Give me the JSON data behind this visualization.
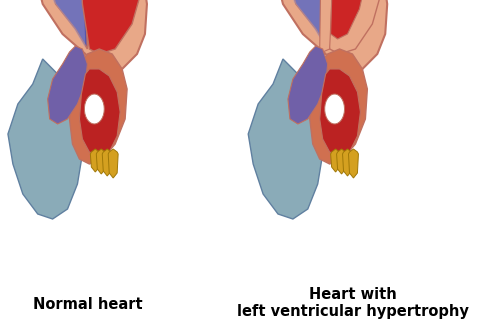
{
  "label_normal": "Normal heart",
  "label_lvh": "Heart with\nleft ventricular hypertrophy",
  "label_fontsize": 10.5,
  "label_fontweight": "bold",
  "bg_color": "#ffffff",
  "skin_color": "#E8A888",
  "skin_outline": "#C07060",
  "lv_color": "#CC2525",
  "rv_color_dark": "#5555AA",
  "rv_color_light": "#9999CC",
  "atrium_orange": "#D07050",
  "atrium_red": "#BB2222",
  "vessel_blue": "#7090A0",
  "vessel_yellow": "#D4A020",
  "valve_color": "#E8A888"
}
